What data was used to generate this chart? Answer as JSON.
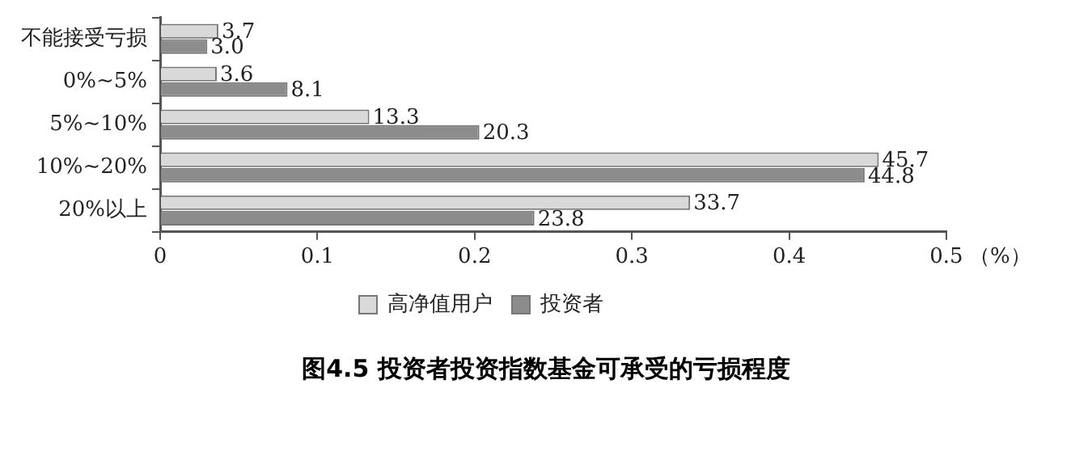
{
  "chart_data": {
    "type": "bar",
    "orientation": "horizontal",
    "title": "图4.5 投资者投资指数基金可承受的亏损程度",
    "xlabel": "（%）",
    "categories": [
      "不能接受亏损",
      "0%~5%",
      "5%~10%",
      "10%~20%",
      "20%以上"
    ],
    "series": [
      {
        "name": "高净值用户",
        "color": "#d9d9d9",
        "values": [
          0.037,
          0.036,
          0.133,
          0.457,
          0.337
        ]
      },
      {
        "name": "投资者",
        "color": "#8c8c8c",
        "values": [
          0.03,
          0.081,
          0.203,
          0.448,
          0.238
        ]
      }
    ],
    "annotations": [
      {
        "text": "3.7",
        "x": 0.037,
        "y": "不能接受亏损"
      },
      {
        "text": "3.0",
        "x": 0.03,
        "y": "不能接受亏损"
      },
      {
        "text": "3.6",
        "x": 0.036,
        "y": "0%~5%"
      },
      {
        "text": "8.1",
        "x": 0.081,
        "y": "0%~5%"
      },
      {
        "text": "13.3",
        "x": 0.133,
        "y": "5%~10%"
      },
      {
        "text": "20.3",
        "x": 0.203,
        "y": "5%~10%"
      },
      {
        "text": "45.7",
        "x": 0.457,
        "y": "10%~20%"
      },
      {
        "text": "44.8",
        "x": 0.448,
        "y": "10%~20%"
      },
      {
        "text": "33.7",
        "x": 0.337,
        "y": "20%以上"
      },
      {
        "text": "23.8",
        "x": 0.238,
        "y": "20%以上"
      }
    ],
    "xlim": [
      0,
      0.5
    ],
    "xticks": [
      0,
      0.1,
      0.2,
      0.3,
      0.4,
      0.5
    ],
    "grid": false,
    "legend": "bottom"
  }
}
